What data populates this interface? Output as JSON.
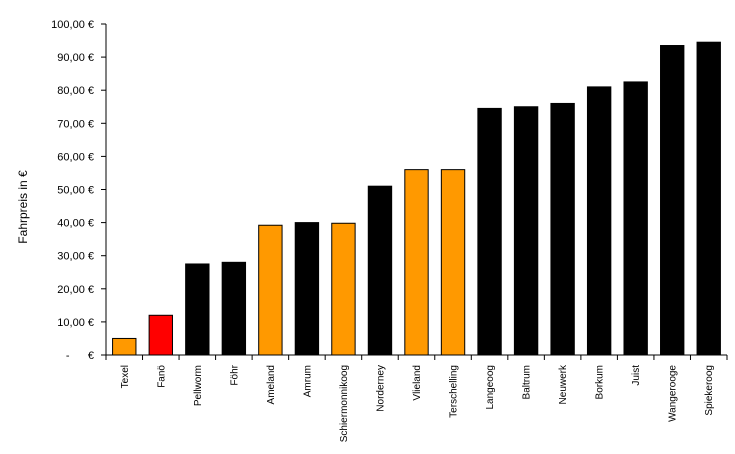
{
  "chart_data": {
    "type": "bar",
    "title": "",
    "xlabel": "",
    "ylabel": "Fahrpreis in €",
    "ylim": [
      0,
      100
    ],
    "grid": false,
    "legend": "none",
    "yticks": [
      {
        "value": 0,
        "label": "-      €"
      },
      {
        "value": 10,
        "label": "10,00 €"
      },
      {
        "value": 20,
        "label": "20,00 €"
      },
      {
        "value": 30,
        "label": "30,00 €"
      },
      {
        "value": 40,
        "label": "40,00 €"
      },
      {
        "value": 50,
        "label": "50,00 €"
      },
      {
        "value": 60,
        "label": "60,00 €"
      },
      {
        "value": 70,
        "label": "70,00 €"
      },
      {
        "value": 80,
        "label": "80,00 €"
      },
      {
        "value": 90,
        "label": "90,00 €"
      },
      {
        "value": 100,
        "label": "100,00 €"
      }
    ],
    "categories": [
      "Texel",
      "Fanö",
      "Pellworm",
      "Föhr",
      "Ameland",
      "Amrum",
      "Schiermonnikoog",
      "Norderney",
      "Vlieland",
      "Terschelling",
      "Langeoog",
      "Baltrum",
      "Neuwerk",
      "Borkum",
      "Juist",
      "Wangerooge",
      "Spiekeroog"
    ],
    "values": [
      5,
      12,
      27.5,
      28,
      39.2,
      40,
      39.8,
      51,
      56,
      56,
      74.5,
      75,
      76,
      81,
      82.5,
      93.5,
      94.5
    ],
    "colors": [
      "#FF9900",
      "#FF0000",
      "#000000",
      "#000000",
      "#FF9900",
      "#000000",
      "#FF9900",
      "#000000",
      "#FF9900",
      "#FF9900",
      "#000000",
      "#000000",
      "#000000",
      "#000000",
      "#000000",
      "#000000",
      "#000000"
    ]
  }
}
